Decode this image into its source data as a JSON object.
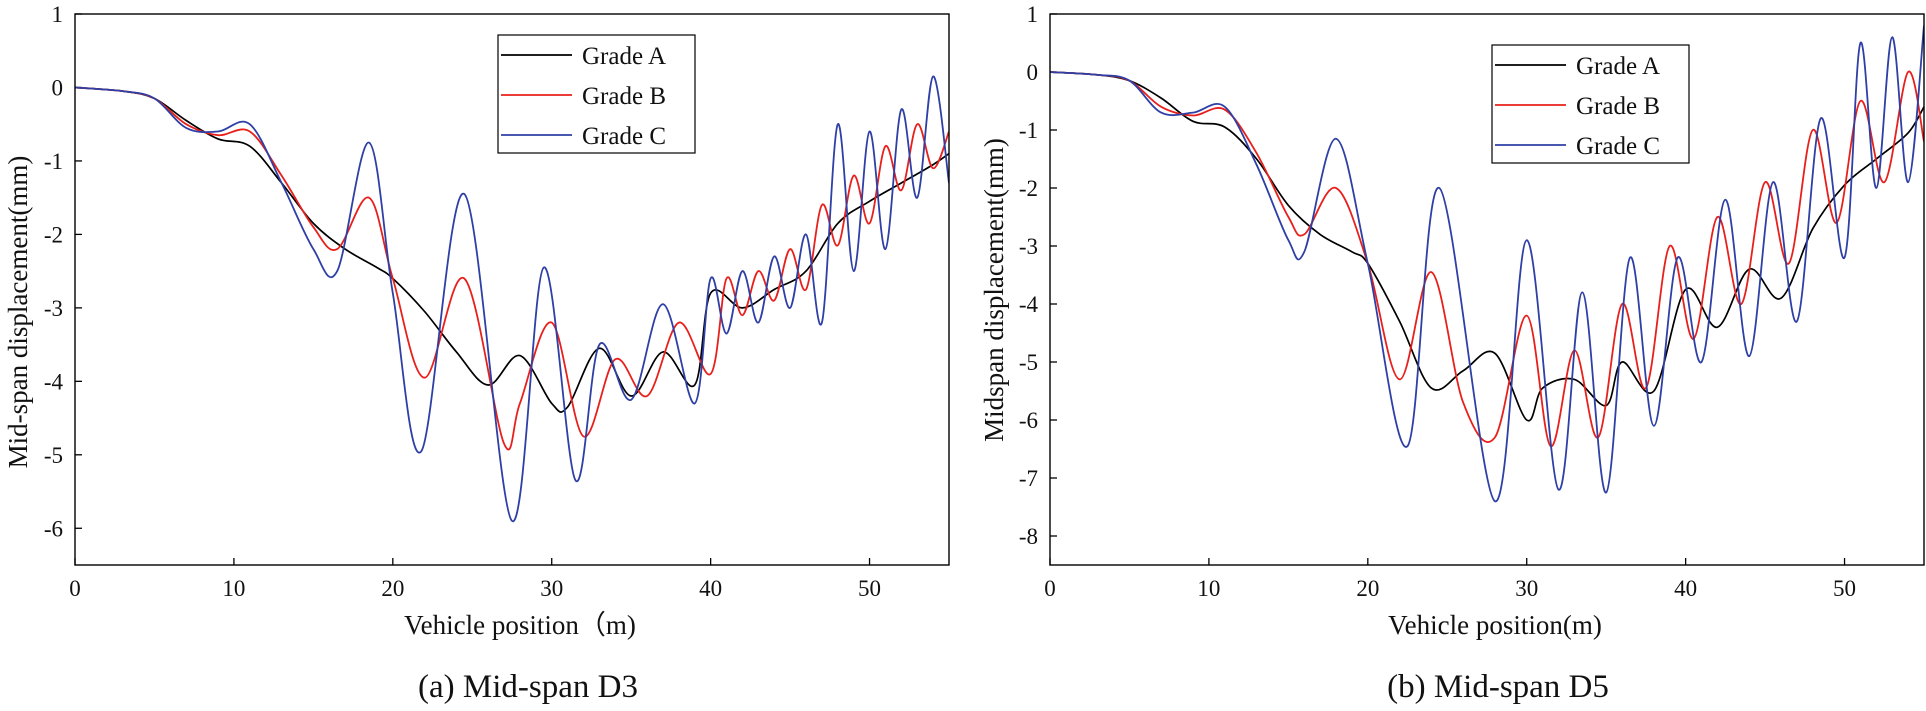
{
  "chart_data": [
    {
      "type": "line",
      "caption": "(a) Mid-span D3",
      "xlabel": "Vehicle position（m)",
      "ylabel": "Mid-span displacement(mm)",
      "xlim": [
        0,
        55
      ],
      "ylim": [
        -6.5,
        1
      ],
      "xticks": [
        0,
        10,
        20,
        30,
        40,
        50
      ],
      "yticks": [
        1,
        0,
        -1,
        -2,
        -3,
        -4,
        -5,
        -6
      ],
      "legend_position": "top-center",
      "series": [
        {
          "name": "Grade A",
          "color": "#000000",
          "x": [
            0,
            3,
            5,
            7,
            9,
            11,
            13,
            15,
            17,
            19,
            20,
            22,
            24,
            26,
            28,
            30,
            31,
            33,
            35,
            37,
            39,
            40,
            42,
            44,
            46,
            48,
            50,
            52,
            54,
            55
          ],
          "y": [
            0,
            -0.05,
            -0.15,
            -0.45,
            -0.7,
            -0.8,
            -1.3,
            -1.85,
            -2.2,
            -2.45,
            -2.6,
            -3.05,
            -3.6,
            -4.05,
            -3.65,
            -4.3,
            -4.35,
            -3.55,
            -4.2,
            -3.6,
            -4.05,
            -2.8,
            -3.0,
            -2.75,
            -2.5,
            -1.85,
            -1.55,
            -1.3,
            -1.05,
            -0.9
          ]
        },
        {
          "name": "Grade B",
          "color": "#e8201c",
          "x": [
            0,
            3,
            5,
            7,
            9,
            11,
            13,
            15,
            16.5,
            18.5,
            20,
            22,
            24.5,
            27,
            28,
            30,
            32,
            34,
            36,
            38,
            40,
            41,
            42,
            43,
            44,
            45,
            46,
            47,
            48,
            49,
            50,
            51,
            52,
            53,
            54,
            55
          ],
          "y": [
            0,
            -0.05,
            -0.15,
            -0.5,
            -0.65,
            -0.6,
            -1.2,
            -1.9,
            -2.2,
            -1.5,
            -2.6,
            -3.95,
            -2.6,
            -4.85,
            -4.3,
            -3.2,
            -4.75,
            -3.7,
            -4.2,
            -3.2,
            -3.9,
            -2.6,
            -3.1,
            -2.5,
            -2.9,
            -2.2,
            -2.75,
            -1.6,
            -2.15,
            -1.2,
            -1.85,
            -0.8,
            -1.4,
            -0.5,
            -1.1,
            -0.6
          ]
        },
        {
          "name": "Grade C",
          "color": "#2e3fa5",
          "x": [
            0,
            3,
            5,
            7,
            9,
            11,
            13,
            15,
            16.5,
            18.5,
            20,
            21.8,
            24.5,
            27.5,
            29.5,
            31.5,
            33,
            35,
            37,
            39,
            40,
            41,
            42,
            43,
            44,
            45,
            46,
            47,
            48,
            49,
            50,
            51,
            52,
            53,
            54,
            55
          ],
          "y": [
            0,
            -0.05,
            -0.15,
            -0.55,
            -0.6,
            -0.5,
            -1.3,
            -2.2,
            -2.5,
            -0.75,
            -2.8,
            -4.95,
            -1.45,
            -5.9,
            -2.45,
            -5.35,
            -3.5,
            -4.25,
            -2.95,
            -4.3,
            -2.6,
            -3.35,
            -2.5,
            -3.2,
            -2.3,
            -3.0,
            -2.0,
            -3.2,
            -0.5,
            -2.5,
            -0.6,
            -2.2,
            -0.3,
            -1.5,
            0.15,
            -1.3
          ]
        }
      ]
    },
    {
      "type": "line",
      "caption": "(b) Mid-span D5",
      "xlabel": "Vehicle position(m)",
      "ylabel": "Midspan displacement(mm)",
      "xlim": [
        0,
        55
      ],
      "ylim": [
        -8.5,
        1
      ],
      "xticks": [
        0,
        10,
        20,
        30,
        40,
        50
      ],
      "yticks": [
        1,
        0,
        -1,
        -2,
        -3,
        -4,
        -5,
        -6,
        -7,
        -8
      ],
      "legend_position": "top-right",
      "series": [
        {
          "name": "Grade A",
          "color": "#000000",
          "x": [
            0,
            3,
            5,
            7,
            9,
            11,
            13,
            15,
            17,
            19,
            20,
            22,
            24,
            26,
            28,
            30,
            31,
            33,
            35,
            36,
            38,
            40,
            42,
            44,
            46,
            48,
            50,
            52,
            54,
            55
          ],
          "y": [
            0,
            -0.05,
            -0.15,
            -0.45,
            -0.85,
            -0.95,
            -1.5,
            -2.3,
            -2.8,
            -3.1,
            -3.3,
            -4.3,
            -5.45,
            -5.15,
            -4.85,
            -6.0,
            -5.45,
            -5.3,
            -5.75,
            -5.0,
            -5.5,
            -3.75,
            -4.4,
            -3.4,
            -3.9,
            -2.7,
            -1.95,
            -1.5,
            -1.05,
            -0.6
          ]
        },
        {
          "name": "Grade B",
          "color": "#e8201c",
          "x": [
            0,
            3,
            5,
            7,
            9,
            11,
            13,
            15,
            16,
            18,
            20,
            22,
            24,
            26,
            28,
            30,
            31.5,
            33,
            34.5,
            36,
            37.5,
            39,
            40.5,
            42,
            43.5,
            45,
            46.5,
            48,
            49.5,
            51,
            52.5,
            54,
            55
          ],
          "y": [
            0,
            -0.05,
            -0.15,
            -0.6,
            -0.75,
            -0.65,
            -1.4,
            -2.5,
            -2.8,
            -2.0,
            -3.3,
            -5.3,
            -3.45,
            -5.7,
            -6.3,
            -4.2,
            -6.45,
            -4.8,
            -6.3,
            -4.0,
            -5.45,
            -3.0,
            -4.6,
            -2.5,
            -4.0,
            -1.9,
            -3.3,
            -1.0,
            -2.6,
            -0.5,
            -1.9,
            0.0,
            -1.2
          ]
        },
        {
          "name": "Grade C",
          "color": "#2e3fa5",
          "x": [
            0,
            3,
            5,
            7,
            9,
            11,
            13,
            15,
            16,
            18,
            20,
            22.5,
            24.5,
            28,
            30,
            32,
            33.5,
            35,
            36.5,
            38,
            39.5,
            41,
            42.5,
            44,
            45.5,
            47,
            48.5,
            50,
            51,
            52,
            53,
            54,
            55
          ],
          "y": [
            0,
            -0.05,
            -0.15,
            -0.7,
            -0.7,
            -0.6,
            -1.6,
            -2.9,
            -3.1,
            -1.15,
            -3.3,
            -6.45,
            -2.0,
            -7.4,
            -2.9,
            -7.2,
            -3.8,
            -7.25,
            -3.2,
            -6.1,
            -3.2,
            -5.0,
            -2.2,
            -4.9,
            -1.9,
            -4.3,
            -0.8,
            -3.2,
            0.5,
            -2.0,
            0.6,
            -1.9,
            0.8
          ]
        }
      ]
    }
  ]
}
